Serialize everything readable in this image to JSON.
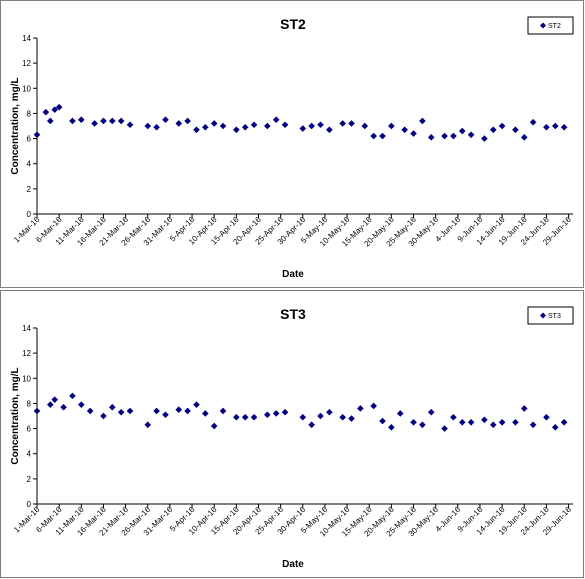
{
  "chart_data": [
    {
      "type": "scatter",
      "title": "ST2",
      "xlabel": "Date",
      "ylabel": "Concentration, mg/L",
      "ylim": [
        0,
        14
      ],
      "yticks": [
        0,
        2,
        4,
        6,
        8,
        10,
        12,
        14
      ],
      "xrange": [
        "2016-03-01",
        "2016-06-30"
      ],
      "xtick_labels": [
        "1-Mar-16",
        "6-Mar-16",
        "11-Mar-16",
        "16-Mar-16",
        "21-Mar-16",
        "26-Mar-16",
        "31-Mar-16",
        "5-Apr-16",
        "10-Apr-16",
        "15-Apr-16",
        "20-Apr-16",
        "25-Apr-16",
        "30-Apr-16",
        "5-May-16",
        "10-May-16",
        "15-May-16",
        "20-May-16",
        "25-May-16",
        "30-May-16",
        "4-Jun-16",
        "9-Jun-16",
        "14-Jun-16",
        "19-Jun-16",
        "24-Jun-16",
        "29-Jun-16"
      ],
      "legend": "top-right",
      "color": "#000080",
      "series": [
        {
          "name": "ST2",
          "x": [
            "2016-03-01",
            "2016-03-03",
            "2016-03-04",
            "2016-03-05",
            "2016-03-06",
            "2016-03-09",
            "2016-03-11",
            "2016-03-14",
            "2016-03-16",
            "2016-03-18",
            "2016-03-20",
            "2016-03-22",
            "2016-03-26",
            "2016-03-28",
            "2016-03-30",
            "2016-04-02",
            "2016-04-04",
            "2016-04-06",
            "2016-04-08",
            "2016-04-10",
            "2016-04-12",
            "2016-04-15",
            "2016-04-17",
            "2016-04-19",
            "2016-04-22",
            "2016-04-24",
            "2016-04-26",
            "2016-04-30",
            "2016-05-02",
            "2016-05-04",
            "2016-05-06",
            "2016-05-09",
            "2016-05-11",
            "2016-05-14",
            "2016-05-16",
            "2016-05-18",
            "2016-05-20",
            "2016-05-23",
            "2016-05-25",
            "2016-05-27",
            "2016-05-29",
            "2016-06-01",
            "2016-06-03",
            "2016-06-05",
            "2016-06-07",
            "2016-06-10",
            "2016-06-12",
            "2016-06-14",
            "2016-06-17",
            "2016-06-19",
            "2016-06-21",
            "2016-06-24",
            "2016-06-26",
            "2016-06-28"
          ],
          "y": [
            6.3,
            8.1,
            7.4,
            8.3,
            8.5,
            7.4,
            7.5,
            7.2,
            7.4,
            7.4,
            7.4,
            7.1,
            7.0,
            6.9,
            7.5,
            7.2,
            7.4,
            6.7,
            6.9,
            7.2,
            7.0,
            6.7,
            6.9,
            7.1,
            7.0,
            7.5,
            7.1,
            6.8,
            7.0,
            7.1,
            6.7,
            7.2,
            7.2,
            7.0,
            6.2,
            6.2,
            7.0,
            6.7,
            6.4,
            7.4,
            6.1,
            6.2,
            6.2,
            6.6,
            6.3,
            6.0,
            6.7,
            7.0,
            6.7,
            6.1,
            7.3,
            6.9,
            7.0,
            6.9
          ]
        }
      ]
    },
    {
      "type": "scatter",
      "title": "ST3",
      "xlabel": "Date",
      "ylabel": "Concentration, mg/L",
      "ylim": [
        0,
        14
      ],
      "yticks": [
        0,
        2,
        4,
        6,
        8,
        10,
        12,
        14
      ],
      "xrange": [
        "2016-03-01",
        "2016-06-30"
      ],
      "xtick_labels": [
        "1-Mar-16",
        "6-Mar-16",
        "11-Mar-16",
        "16-Mar-16",
        "21-Mar-16",
        "26-Mar-16",
        "31-Mar-16",
        "5-Apr-16",
        "10-Apr-16",
        "15-Apr-16",
        "20-Apr-16",
        "25-Apr-16",
        "30-Apr-16",
        "5-May-16",
        "10-May-16",
        "15-May-16",
        "20-May-16",
        "25-May-16",
        "30-May-16",
        "4-Jun-16",
        "9-Jun-16",
        "14-Jun-16",
        "19-Jun-16",
        "24-Jun-16",
        "29-Jun-16"
      ],
      "legend": "top-right",
      "color": "#000080",
      "series": [
        {
          "name": "ST3",
          "x": [
            "2016-03-01",
            "2016-03-04",
            "2016-03-05",
            "2016-03-07",
            "2016-03-09",
            "2016-03-11",
            "2016-03-13",
            "2016-03-16",
            "2016-03-18",
            "2016-03-20",
            "2016-03-22",
            "2016-03-26",
            "2016-03-28",
            "2016-03-30",
            "2016-04-02",
            "2016-04-04",
            "2016-04-06",
            "2016-04-08",
            "2016-04-10",
            "2016-04-12",
            "2016-04-15",
            "2016-04-17",
            "2016-04-19",
            "2016-04-22",
            "2016-04-24",
            "2016-04-26",
            "2016-04-30",
            "2016-05-02",
            "2016-05-04",
            "2016-05-06",
            "2016-05-09",
            "2016-05-11",
            "2016-05-13",
            "2016-05-16",
            "2016-05-18",
            "2016-05-20",
            "2016-05-22",
            "2016-05-25",
            "2016-05-27",
            "2016-05-29",
            "2016-06-01",
            "2016-06-03",
            "2016-06-05",
            "2016-06-07",
            "2016-06-10",
            "2016-06-12",
            "2016-06-14",
            "2016-06-17",
            "2016-06-19",
            "2016-06-21",
            "2016-06-24",
            "2016-06-26",
            "2016-06-28"
          ],
          "y": [
            7.4,
            7.9,
            8.3,
            7.7,
            8.6,
            7.9,
            7.4,
            7.0,
            7.7,
            7.3,
            7.4,
            6.3,
            7.4,
            7.1,
            7.5,
            7.4,
            7.9,
            7.2,
            6.2,
            7.4,
            6.9,
            6.9,
            6.9,
            7.1,
            7.2,
            7.3,
            6.9,
            6.3,
            7.0,
            7.3,
            6.9,
            6.8,
            7.6,
            7.8,
            6.6,
            6.1,
            7.2,
            6.5,
            6.3,
            7.3,
            6.0,
            6.9,
            6.5,
            6.5,
            6.7,
            6.3,
            6.5,
            6.5,
            7.6,
            6.3,
            6.9,
            6.1,
            6.5
          ]
        }
      ]
    }
  ]
}
